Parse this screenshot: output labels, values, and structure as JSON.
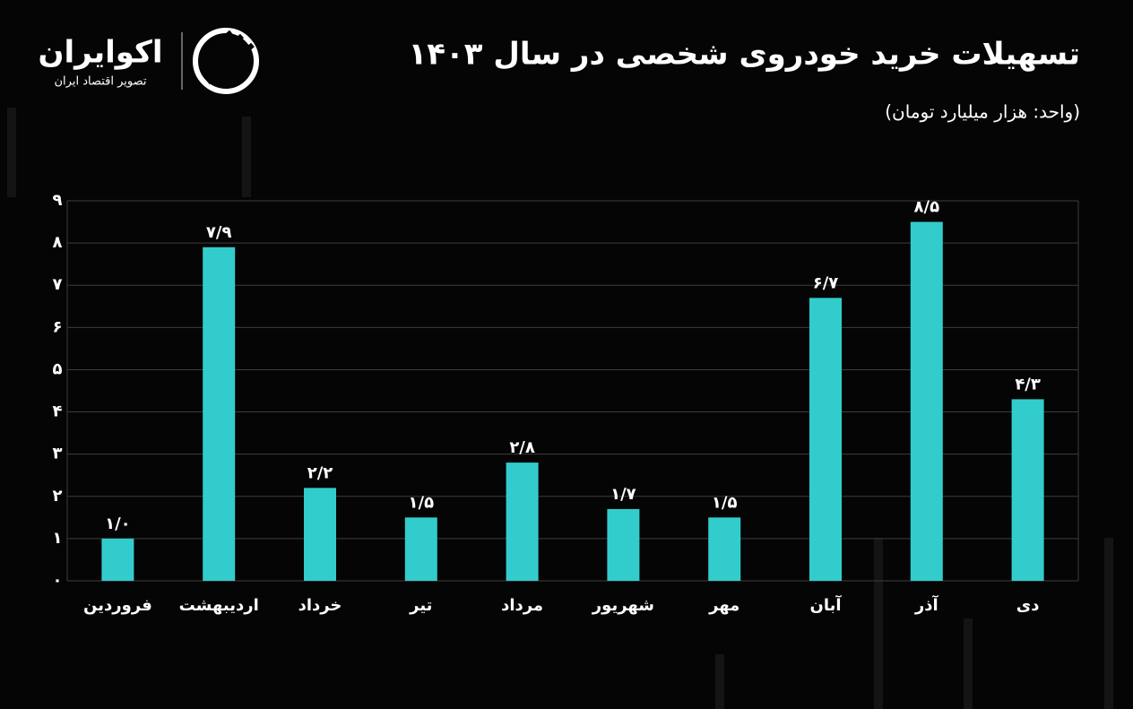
{
  "brand": {
    "name": "اکوایران",
    "tagline": "تصویر اقتصاد ایران"
  },
  "chart_data": {
    "type": "bar",
    "title": "تسهیلات خرید خودروی شخصی در سال ۱۴۰۳",
    "subtitle": "(واحد: هزار میلیارد تومان)",
    "categories": [
      "فروردین",
      "اردیبهشت",
      "خرداد",
      "تیر",
      "مرداد",
      "شهریور",
      "مهر",
      "آبان",
      "آذر",
      "دی"
    ],
    "values": [
      1.0,
      7.9,
      2.2,
      1.5,
      2.8,
      1.7,
      1.5,
      6.7,
      8.5,
      4.3
    ],
    "value_labels": [
      "۱/۰",
      "۷/۹",
      "۲/۲",
      "۱/۵",
      "۲/۸",
      "۱/۷",
      "۱/۵",
      "۶/۷",
      "۸/۵",
      "۴/۳"
    ],
    "color": "#33cccc",
    "ylim": [
      0,
      9
    ],
    "yticks": [
      {
        "value": 0,
        "label": "۰"
      },
      {
        "value": 1,
        "label": "۱"
      },
      {
        "value": 2,
        "label": "۲"
      },
      {
        "value": 3,
        "label": "۳"
      },
      {
        "value": 4,
        "label": "۴"
      },
      {
        "value": 5,
        "label": "۵"
      },
      {
        "value": 6,
        "label": "۶"
      },
      {
        "value": 7,
        "label": "۷"
      },
      {
        "value": 8,
        "label": "۸"
      },
      {
        "value": 9,
        "label": "۹"
      }
    ],
    "grid": true
  }
}
